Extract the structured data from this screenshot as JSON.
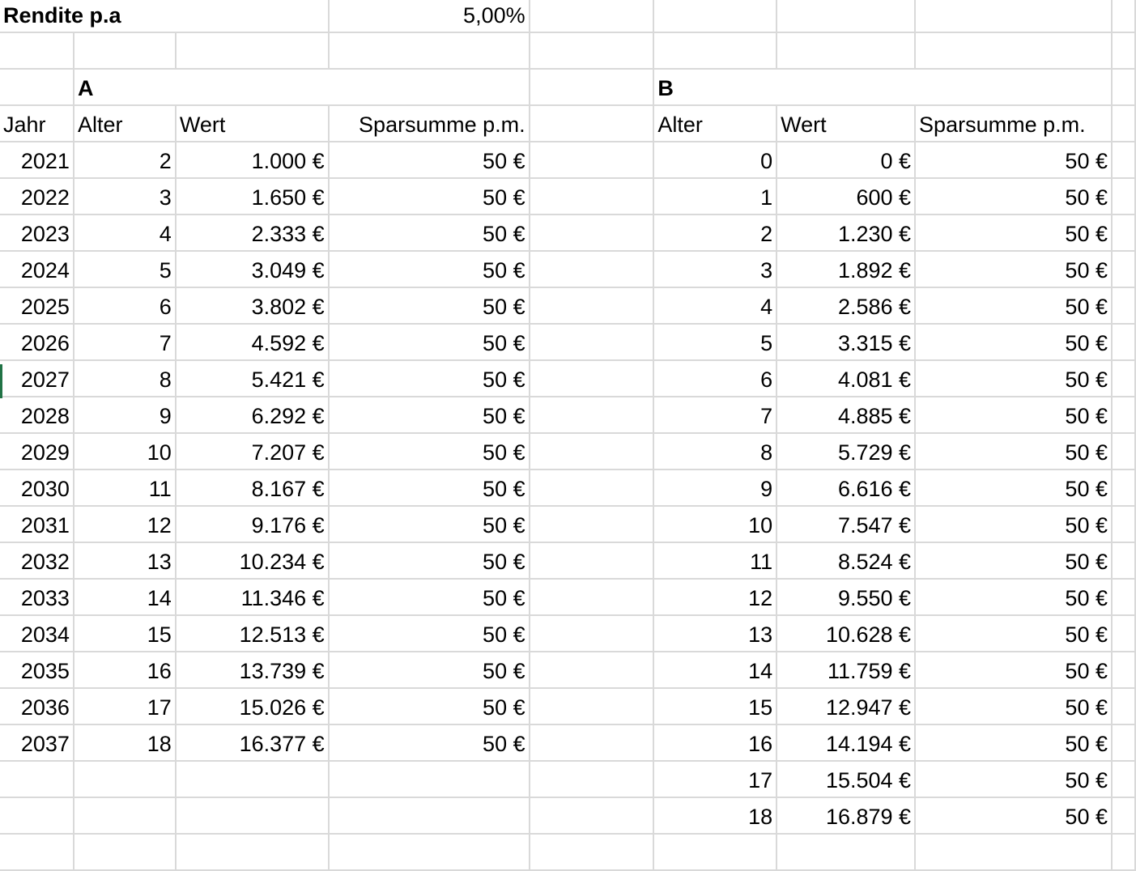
{
  "header": {
    "label": "Rendite p.a",
    "rate": "5,00%"
  },
  "groups": {
    "a": "A",
    "b": "B"
  },
  "columns": {
    "a": [
      "Jahr",
      "Alter",
      "Wert",
      "Sparsumme p.m."
    ],
    "b": [
      "Alter",
      "Wert",
      "Sparsumme p.m."
    ]
  },
  "table_a": [
    [
      "2021",
      "2",
      "1.000 €",
      "50 €"
    ],
    [
      "2022",
      "3",
      "1.650 €",
      "50 €"
    ],
    [
      "2023",
      "4",
      "2.333 €",
      "50 €"
    ],
    [
      "2024",
      "5",
      "3.049 €",
      "50 €"
    ],
    [
      "2025",
      "6",
      "3.802 €",
      "50 €"
    ],
    [
      "2026",
      "7",
      "4.592 €",
      "50 €"
    ],
    [
      "2027",
      "8",
      "5.421 €",
      "50 €"
    ],
    [
      "2028",
      "9",
      "6.292 €",
      "50 €"
    ],
    [
      "2029",
      "10",
      "7.207 €",
      "50 €"
    ],
    [
      "2030",
      "11",
      "8.167 €",
      "50 €"
    ],
    [
      "2031",
      "12",
      "9.176 €",
      "50 €"
    ],
    [
      "2032",
      "13",
      "10.234 €",
      "50 €"
    ],
    [
      "2033",
      "14",
      "11.346 €",
      "50 €"
    ],
    [
      "2034",
      "15",
      "12.513 €",
      "50 €"
    ],
    [
      "2035",
      "16",
      "13.739 €",
      "50 €"
    ],
    [
      "2036",
      "17",
      "15.026 €",
      "50 €"
    ],
    [
      "2037",
      "18",
      "16.377 €",
      "50 €"
    ]
  ],
  "table_b": [
    [
      "0",
      "0 €",
      "50 €"
    ],
    [
      "1",
      "600 €",
      "50 €"
    ],
    [
      "2",
      "1.230 €",
      "50 €"
    ],
    [
      "3",
      "1.892 €",
      "50 €"
    ],
    [
      "4",
      "2.586 €",
      "50 €"
    ],
    [
      "5",
      "3.315 €",
      "50 €"
    ],
    [
      "6",
      "4.081 €",
      "50 €"
    ],
    [
      "7",
      "4.885 €",
      "50 €"
    ],
    [
      "8",
      "5.729 €",
      "50 €"
    ],
    [
      "9",
      "6.616 €",
      "50 €"
    ],
    [
      "10",
      "7.547 €",
      "50 €"
    ],
    [
      "11",
      "8.524 €",
      "50 €"
    ],
    [
      "12",
      "9.550 €",
      "50 €"
    ],
    [
      "13",
      "10.628 €",
      "50 €"
    ],
    [
      "14",
      "11.759 €",
      "50 €"
    ],
    [
      "15",
      "12.947 €",
      "50 €"
    ],
    [
      "16",
      "14.194 €",
      "50 €"
    ],
    [
      "17",
      "15.504 €",
      "50 €"
    ],
    [
      "18",
      "16.879 €",
      "50 €"
    ]
  ]
}
